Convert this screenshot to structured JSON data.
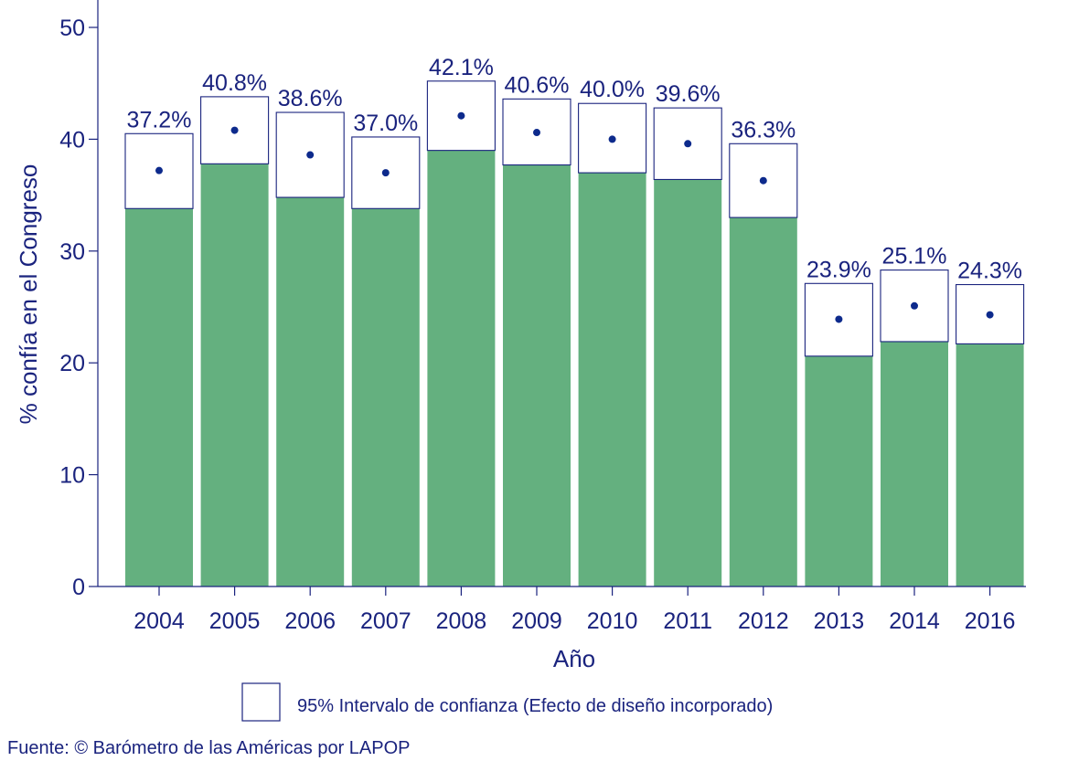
{
  "chart_data": {
    "type": "bar",
    "categories": [
      "2004",
      "2005",
      "2006",
      "2007",
      "2008",
      "2009",
      "2010",
      "2011",
      "2012",
      "2013",
      "2014",
      "2016"
    ],
    "values": [
      37.2,
      40.8,
      38.6,
      37.0,
      42.1,
      40.6,
      40.0,
      39.6,
      36.3,
      23.9,
      25.1,
      24.3
    ],
    "ci_lower": [
      33.8,
      37.8,
      34.8,
      33.8,
      39.0,
      37.7,
      37.0,
      36.4,
      33.0,
      20.6,
      21.9,
      21.7
    ],
    "ci_upper": [
      40.5,
      43.8,
      42.4,
      40.2,
      45.2,
      43.6,
      43.2,
      42.8,
      39.6,
      27.1,
      28.3,
      27.0
    ],
    "data_labels": [
      "37.2%",
      "40.8%",
      "38.6%",
      "37.0%",
      "42.1%",
      "40.6%",
      "40.0%",
      "39.6%",
      "36.3%",
      "23.9%",
      "25.1%",
      "24.3%"
    ],
    "xlabel": "Año",
    "ylabel": "% confía en el Congreso",
    "ylim": [
      0,
      50
    ],
    "yticks": [
      "0",
      "10",
      "20",
      "30",
      "40",
      "50"
    ],
    "grid": false,
    "legend": {
      "label": "95% Intervalo de confianza (Efecto de diseño incorporado)",
      "placement": "bottom-center"
    },
    "source": "Fuente: © Barómetro de las Américas por LAPOP",
    "colors": {
      "bar": "#64b07f",
      "ci_box": "#ffffff",
      "ci_border": "#1a237e",
      "point": "#0d2a8c",
      "axis": "#1a237e",
      "text": "#1a237e"
    }
  }
}
